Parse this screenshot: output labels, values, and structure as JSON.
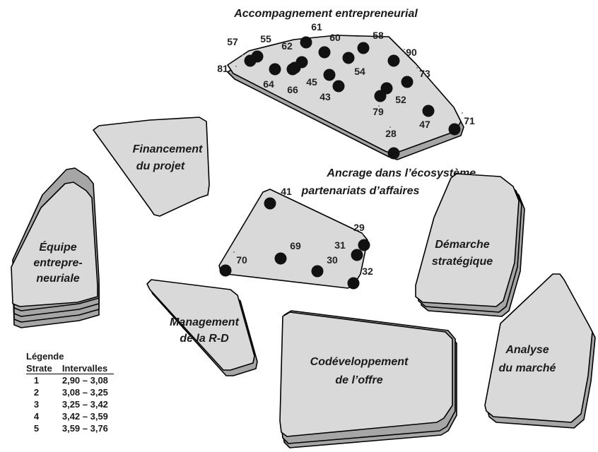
{
  "zones": {
    "accompagnement": "Accompagnement entrepreneurial",
    "financement": [
      "Financement",
      "du projet"
    ],
    "ancrage": [
      "Ancrage dans l’écosystème,",
      "partenariats d’affaires"
    ],
    "equipe": [
      "Équipe",
      "entrepre-",
      "neuriale"
    ],
    "demarche": [
      "Démarche",
      "stratégique"
    ],
    "management": [
      "Management",
      "de la R-D"
    ],
    "codeveloppement": [
      "Codéveloppement",
      "de l’offre"
    ],
    "analyse": [
      "Analyse",
      "du marché"
    ]
  },
  "points": {
    "accompagnement": [
      "57",
      "55",
      "61",
      "62",
      "60",
      "58",
      "81",
      "64",
      "66",
      "45",
      "43",
      "54",
      "90",
      "73",
      "52",
      "79",
      "47",
      "28",
      "71"
    ],
    "ancrage": [
      "41",
      "29",
      "69",
      "31",
      "70",
      "30",
      "32"
    ]
  },
  "legend": {
    "title": "Légende",
    "col_strate": "Strate",
    "col_intervalles": "Intervalles",
    "rows": [
      {
        "strate": "1",
        "intervalle": "2,90 – 3,08"
      },
      {
        "strate": "2",
        "intervalle": "3,08 – 3,25"
      },
      {
        "strate": "3",
        "intervalle": "3,25 – 3,42"
      },
      {
        "strate": "4",
        "intervalle": "3,42 – 3,59"
      },
      {
        "strate": "5",
        "intervalle": "3,59 – 3,76"
      }
    ]
  }
}
